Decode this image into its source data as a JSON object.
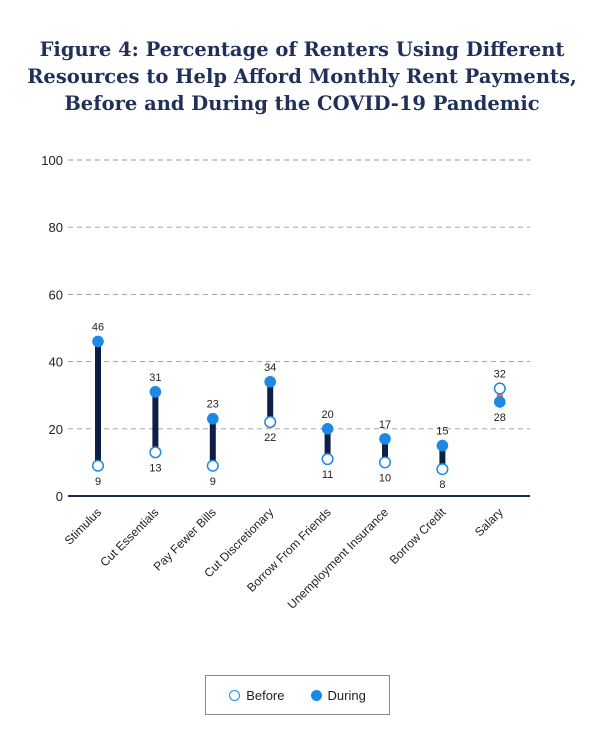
{
  "title_lines": [
    "Figure 4: Percentage of Renters Using Different",
    "Resources to Help Afford Monthly Rent Payments,",
    "Before and During the COVID-19 Pandemic"
  ],
  "legend": {
    "before_label": "Before",
    "during_label": "During"
  },
  "colors": {
    "marker": "#1e88e5",
    "bar": "#0d1f45",
    "bar_negative": "#e8714f",
    "grid": "#9a9a9a",
    "axis": "#1a2a4f",
    "title": "#1f3158"
  },
  "chart_data": {
    "type": "dumbbell",
    "title": "Figure 4: Percentage of Renters Using Different Resources to Help Afford Monthly Rent Payments, Before and During the COVID-19 Pandemic",
    "categories": [
      "Stimulus",
      "Cut Essentials",
      "Pay Fewer Bills",
      "Cut Discretionary",
      "Borrow From Friends",
      "Unemployment Insurance",
      "Borrow Credit",
      "Salary"
    ],
    "series": [
      {
        "name": "Before",
        "values": [
          9,
          13,
          9,
          22,
          11,
          10,
          8,
          32
        ]
      },
      {
        "name": "During",
        "values": [
          46,
          31,
          23,
          34,
          20,
          17,
          15,
          28
        ]
      }
    ],
    "ylim": [
      0,
      100
    ],
    "yticks": [
      0,
      20,
      40,
      60,
      80,
      100
    ],
    "grid": true,
    "legend_position": "bottom"
  }
}
